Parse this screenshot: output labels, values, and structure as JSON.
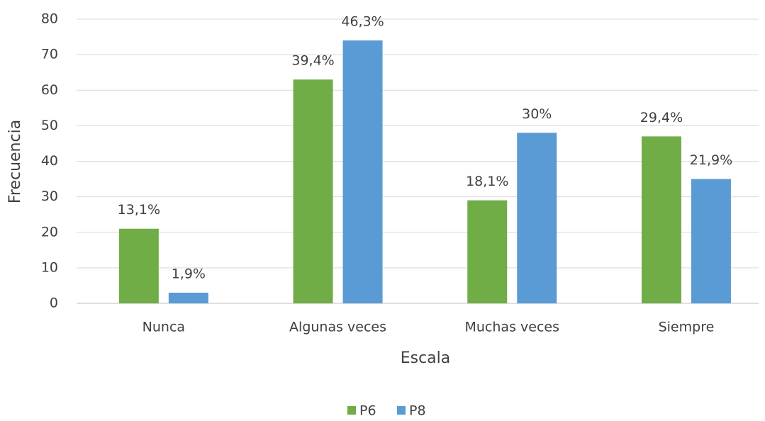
{
  "chart_data": {
    "type": "bar",
    "x_label": "Escala",
    "y_label": "Frecuencia",
    "categories": [
      "Nunca",
      "Algunas veces",
      "Muchas veces",
      "Siempre"
    ],
    "series": [
      {
        "name": "P6",
        "color": "#70ad47",
        "values": [
          21,
          63,
          29,
          47
        ],
        "percent_labels": [
          "13,1%",
          "39,4%",
          "18,1%",
          "29,4%"
        ]
      },
      {
        "name": "P8",
        "color": "#5b9bd5",
        "values": [
          3,
          74,
          48,
          35
        ],
        "percent_labels": [
          "1,9%",
          "46,3%",
          "30%",
          "21,9%"
        ]
      }
    ],
    "ylim": [
      0,
      80
    ],
    "yticks": [
      0,
      10,
      20,
      30,
      40,
      50,
      60,
      70,
      80
    ],
    "grid": true,
    "legend": "bottom"
  }
}
